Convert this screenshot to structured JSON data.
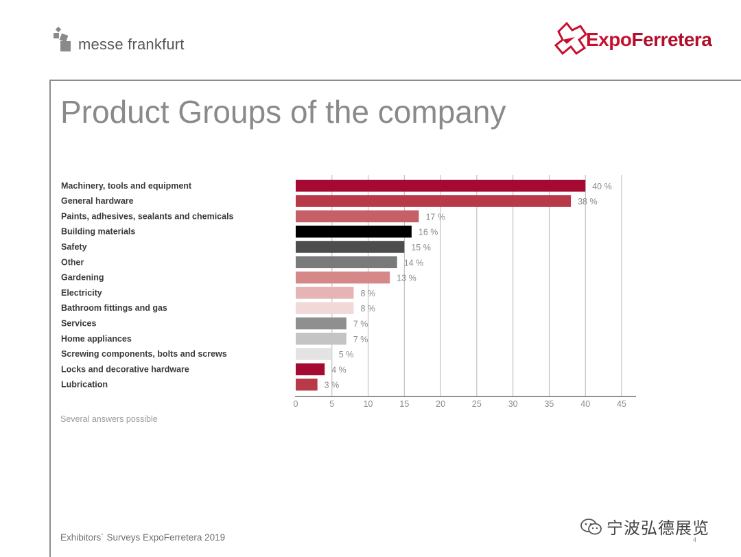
{
  "header": {
    "left_logo_text": "messe frankfurt",
    "right_logo_expo": "Expo",
    "right_logo_ferretera": "Ferretera"
  },
  "title": "Product Groups of the company",
  "chart_data": {
    "type": "bar",
    "orientation": "horizontal",
    "categories": [
      "Machinery, tools and equipment",
      "General hardware",
      "Paints, adhesives, sealants and chemicals",
      "Building materials",
      "Safety",
      "Other",
      "Gardening",
      "Electricity",
      "Bathroom fittings and gas",
      "Services",
      "Home appliances",
      "Screwing components, bolts and screws",
      "Locks and decorative hardware",
      "Lubrication"
    ],
    "values": [
      40,
      38,
      17,
      16,
      15,
      14,
      13,
      8,
      8,
      7,
      7,
      5,
      4,
      3
    ],
    "value_labels": [
      "40 %",
      "38 %",
      "17 %",
      "16 %",
      "15 %",
      "14 %",
      "13 %",
      "8 %",
      "8 %",
      "7 %",
      "7 %",
      "5 %",
      "4 %",
      "3 %"
    ],
    "colors": [
      "#a50a32",
      "#b83a48",
      "#c66068",
      "#000000",
      "#4d4d4d",
      "#7a7a7a",
      "#d68888",
      "#e6b4b4",
      "#f2d9d9",
      "#8f8f8f",
      "#c4c4c4",
      "#e3e3e3",
      "#a50a32",
      "#b83a48"
    ],
    "xlim": [
      0,
      45
    ],
    "xticks": [
      0,
      5,
      10,
      15,
      20,
      25,
      30,
      35,
      40,
      45
    ],
    "grid": true
  },
  "note": "Several answers possible",
  "footer": "Exhibitors´ Surveys ExpoFerretera 2019",
  "page_number": "4",
  "watermark": "宁波弘德展览"
}
